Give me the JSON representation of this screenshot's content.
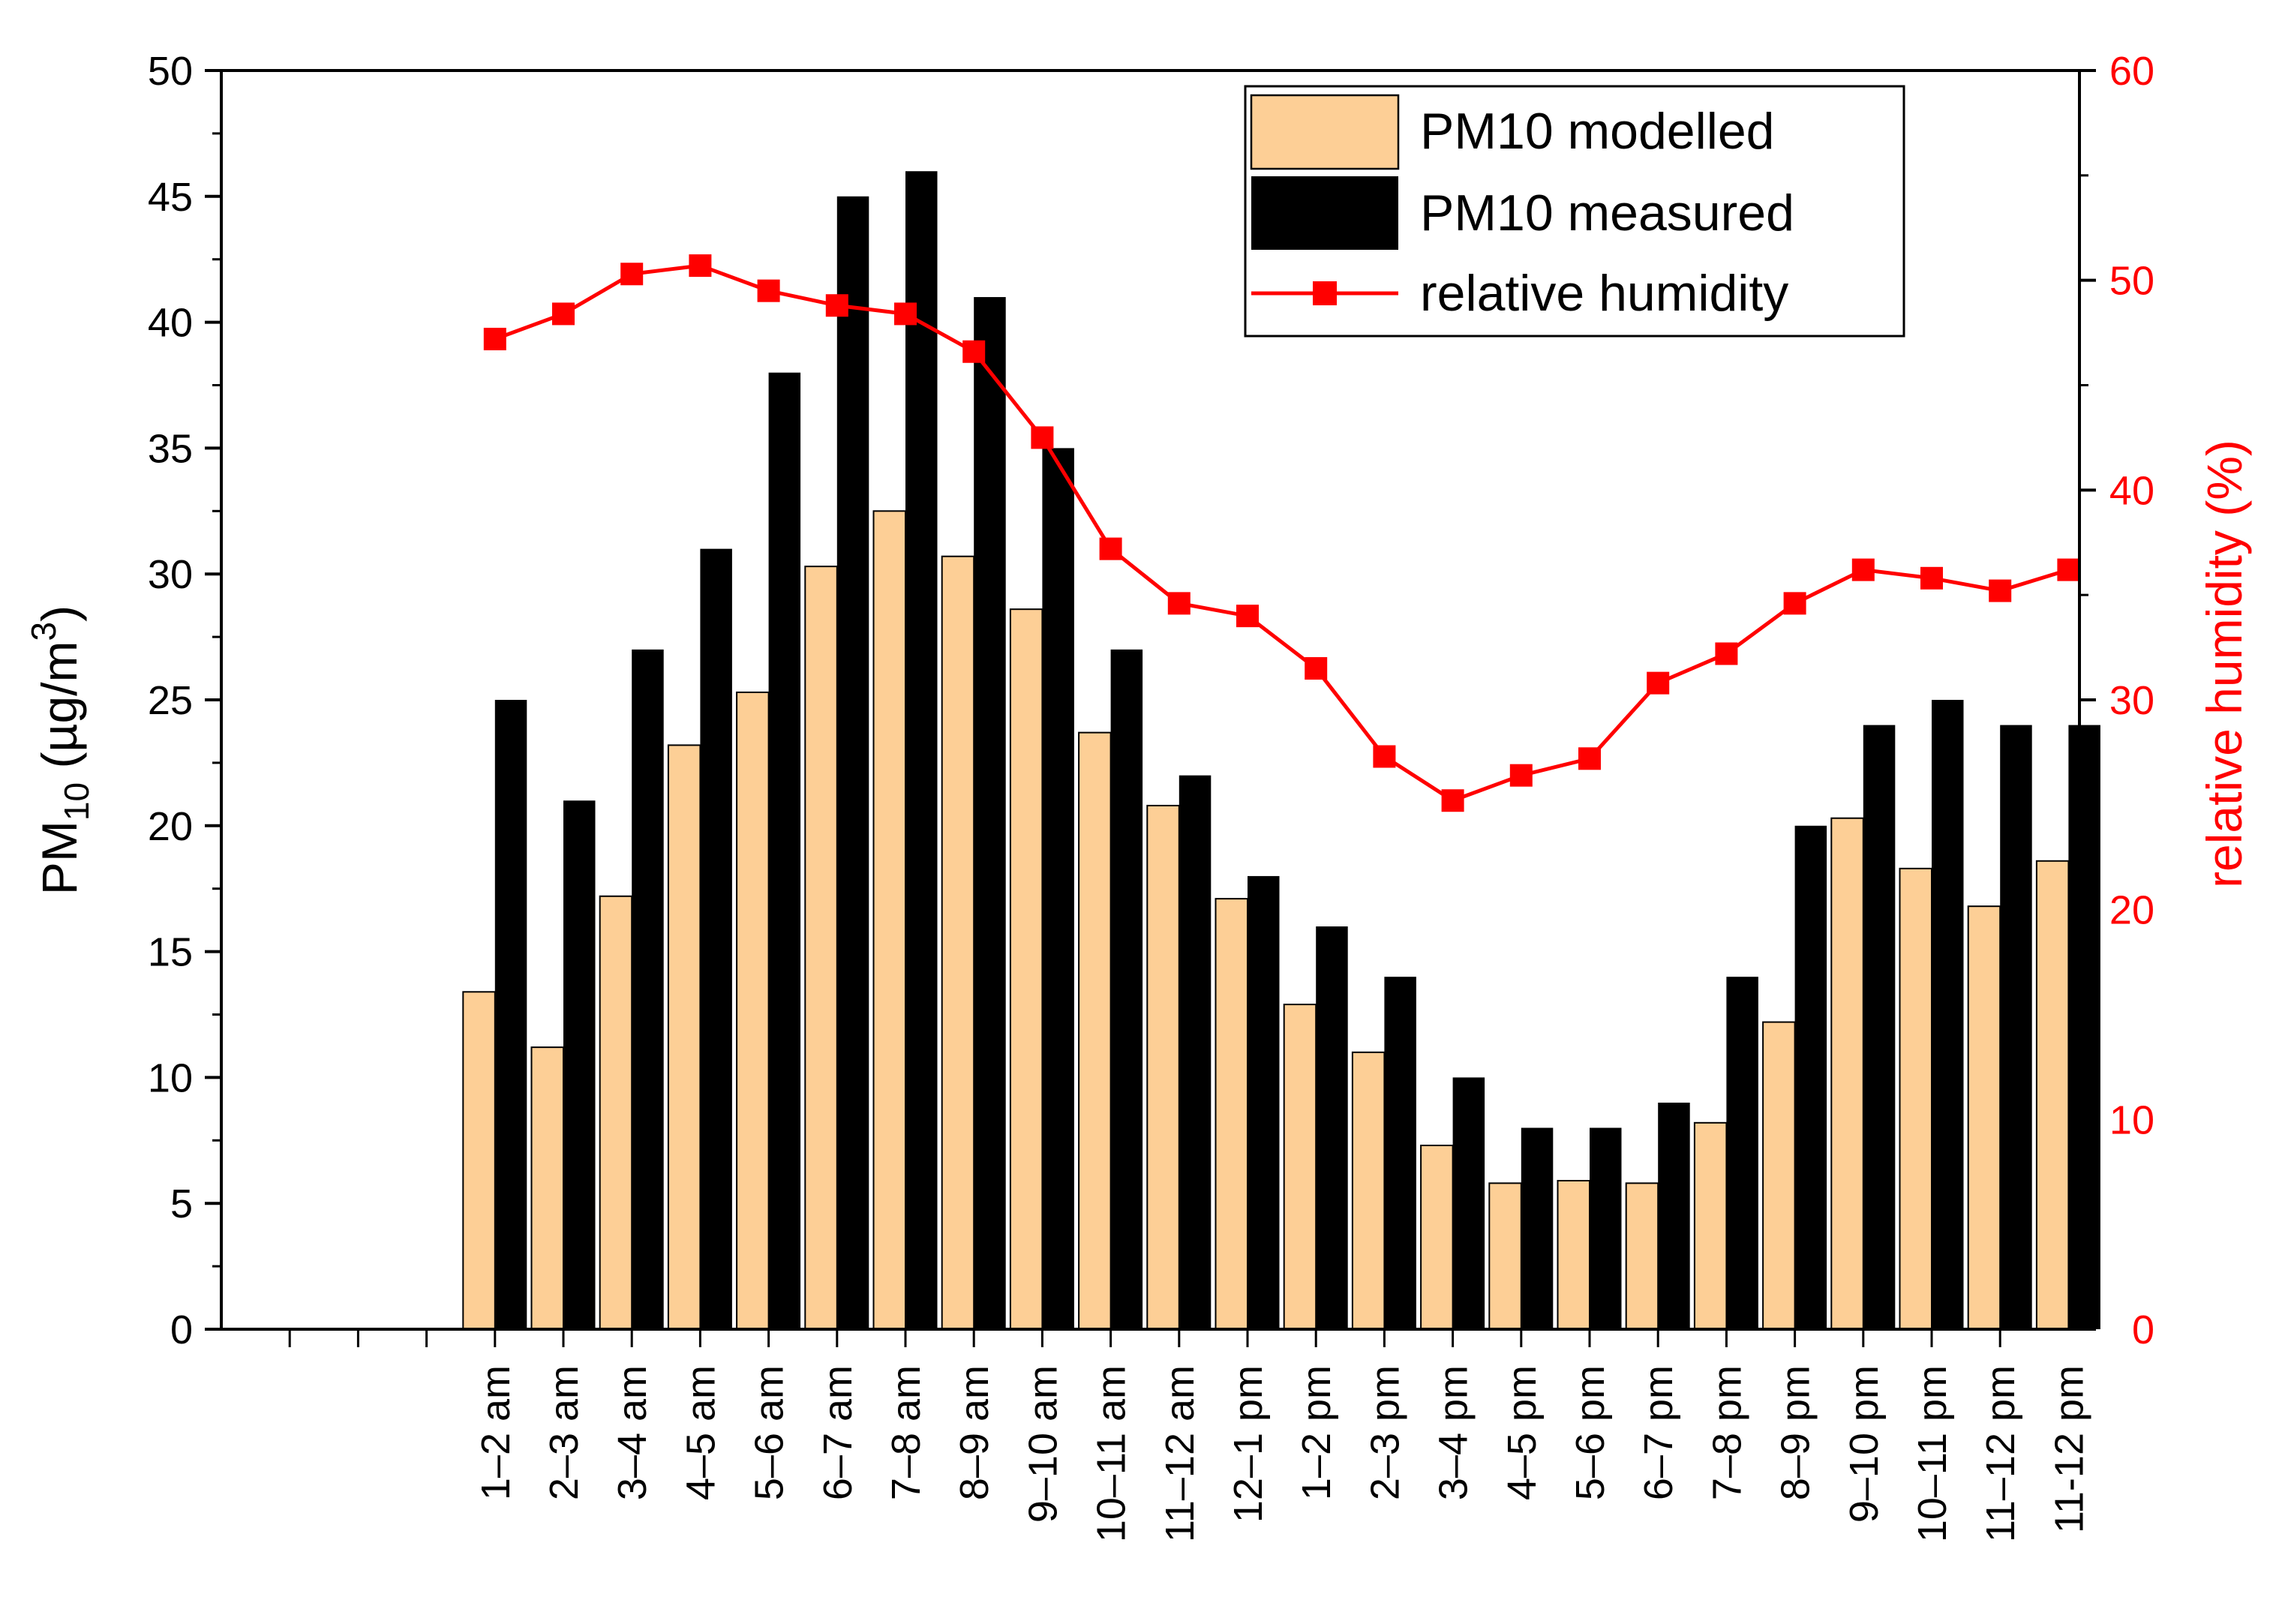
{
  "chart_data": {
    "type": "bar",
    "categories": [
      "1–2 am",
      "2–3 am",
      "3–4 am",
      "4–5 am",
      "5–6 am",
      "6–7 am",
      "7–8 am",
      "8–9 am",
      "9–10 am",
      "10–11 am",
      "11–12 am",
      "12–1 pm",
      "1–2 pm",
      "2–3 pm",
      "3–4 pm",
      "4–5 pm",
      "5–6 pm",
      "6–7 pm",
      "7–8 pm",
      "8–9 pm",
      "9–10 pm",
      "10–11 pm",
      "11–12 pm",
      "11-12 pm"
    ],
    "series": [
      {
        "name": "PM10 modelled",
        "kind": "bar",
        "axis": "left",
        "color": "#fdcf96",
        "values": [
          13.4,
          11.2,
          17.2,
          23.2,
          25.3,
          30.3,
          32.5,
          30.7,
          28.6,
          23.7,
          20.8,
          17.1,
          12.9,
          11.0,
          7.3,
          5.8,
          5.9,
          5.8,
          8.2,
          12.2,
          20.3,
          18.3,
          16.8,
          18.6
        ]
      },
      {
        "name": "PM10 measured",
        "kind": "bar",
        "axis": "left",
        "color": "#000000",
        "values": [
          25,
          21,
          27,
          31,
          38,
          45,
          46,
          41,
          35,
          27,
          22,
          18,
          16,
          14,
          10,
          8,
          8,
          9,
          14,
          20,
          24,
          25,
          24,
          24
        ]
      },
      {
        "name": "relative humidity",
        "kind": "line",
        "axis": "right",
        "color": "#ff0000",
        "values": [
          47.2,
          48.4,
          50.3,
          50.7,
          49.5,
          48.8,
          48.4,
          46.6,
          42.5,
          37.2,
          34.6,
          34.0,
          31.5,
          27.3,
          25.2,
          26.4,
          27.2,
          30.8,
          32.2,
          34.6,
          36.2,
          35.8,
          35.2,
          36.2
        ]
      }
    ],
    "ylabel_main": "PM",
    "ylabel_sub": "10",
    "ylabel_unit_pre": " (µg/m",
    "ylabel_unit_sup": "3",
    "ylabel_unit_post": ")",
    "y2label": "relative humidity (%)",
    "ylim": [
      0,
      50
    ],
    "yticks": [
      "0",
      "5",
      "10",
      "15",
      "20",
      "25",
      "30",
      "35",
      "40",
      "45",
      "50"
    ],
    "y2lim": [
      0,
      60
    ],
    "y2ticks": [
      "0",
      "10",
      "20",
      "30",
      "40",
      "50",
      "60"
    ],
    "legend": {
      "position": "top-right",
      "entries": [
        "PM10 modelled",
        "PM10 measured",
        "relative humidity"
      ]
    }
  }
}
